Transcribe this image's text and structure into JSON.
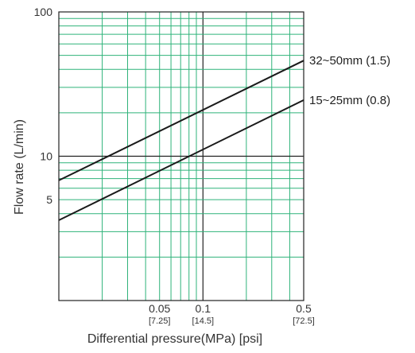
{
  "chart_data": {
    "type": "line",
    "title": "",
    "xlabel": "Differential pressure(MPa) [psi]",
    "ylabel": "Flow rate (L/min)",
    "x_scale": "log",
    "y_scale": "log",
    "xlim": [
      0.01,
      0.5
    ],
    "ylim": [
      1,
      100
    ],
    "grid": true,
    "y_ticks": [
      {
        "value": 100,
        "label": "100"
      },
      {
        "value": 10,
        "label": "10"
      },
      {
        "value": 5,
        "label": "5"
      }
    ],
    "x_ticks": [
      {
        "value": 0.05,
        "label": "0.05",
        "sublabel": "[7.25]"
      },
      {
        "value": 0.1,
        "label": "0.1",
        "sublabel": "[14.5]"
      },
      {
        "value": 0.5,
        "label": "0.5",
        "sublabel": "[72.5]"
      }
    ],
    "series": [
      {
        "name": "32~50mm (1.5)",
        "x": [
          0.01,
          0.5
        ],
        "y": [
          6.8,
          46
        ]
      },
      {
        "name": "15~25mm (0.8)",
        "x": [
          0.01,
          0.5
        ],
        "y": [
          3.6,
          24.5
        ]
      }
    ],
    "colors": {
      "grid_minor": "#2fb37a",
      "grid_major": "#222222",
      "series": "#1a1a1a",
      "text": "#333333"
    }
  }
}
